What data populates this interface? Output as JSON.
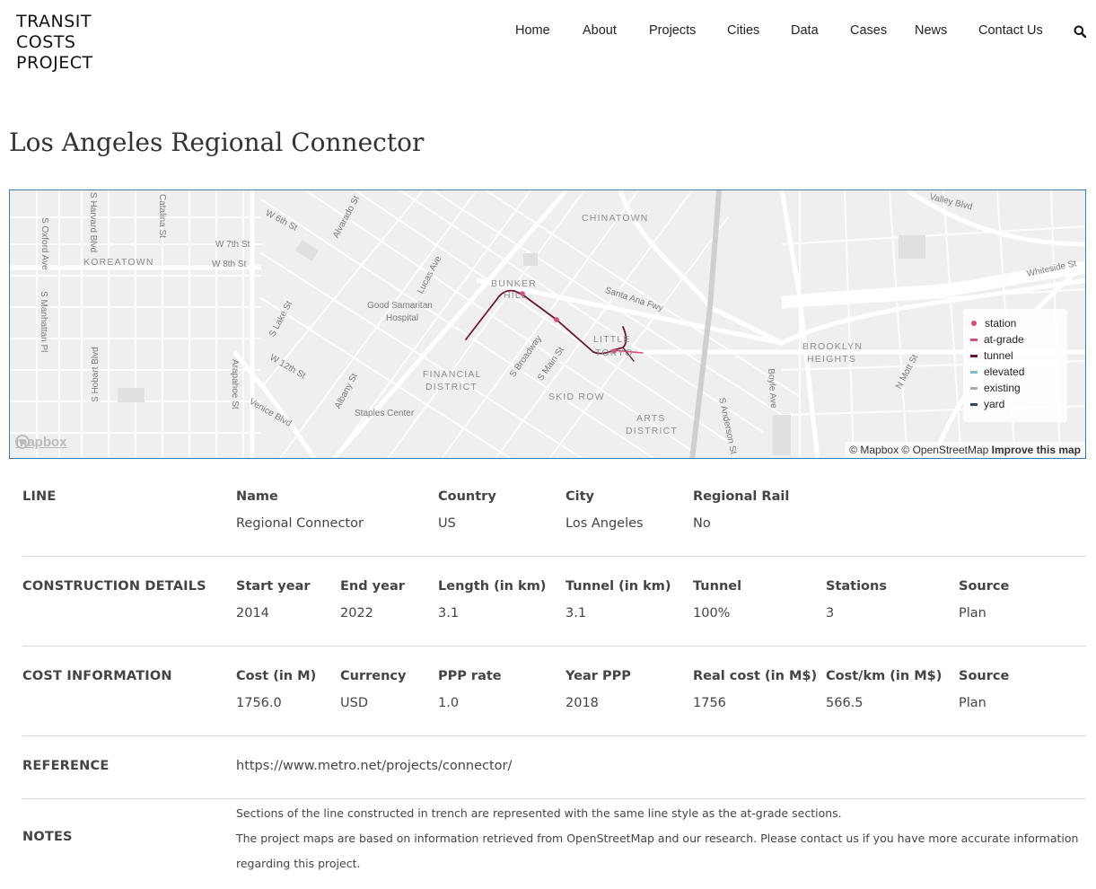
{
  "logo": [
    "TRANSIT",
    "COSTS",
    "PROJECT"
  ],
  "nav": [
    "Home",
    "About",
    "Projects",
    "Cities",
    "Data",
    "Cases",
    "News",
    "Contact Us"
  ],
  "page_title": "Los Angeles Regional Connector",
  "map": {
    "area_labels": [
      "KOREATOWN",
      "CHINATOWN",
      "BUNKER",
      "HILL",
      "LITTLE",
      "TOKYO",
      "FINANCIAL",
      "DISTRICT",
      "SKID ROW",
      "ARTS",
      "DISTRICT",
      "BROOKLYN",
      "HEIGHTS"
    ],
    "street_labels": [
      "S Oxford Ave",
      "S Harvard Blvd",
      "Catalina St",
      "W 6th St",
      "Alvarado St",
      "W 7th St",
      "W 8th St",
      "S Manhattan Pl",
      "Lucas Ave",
      "Good Samaritan",
      "Hospital",
      "S Lake St",
      "W 12th St",
      "S Hobart Blvd",
      "Arapahoe St",
      "Venice Blvd",
      "Albany St",
      "Staples Center",
      "S Broadway",
      "S Main St",
      "Santa Ana Fwy",
      "S Anderson St",
      "Boyle Ave",
      "N Mott St",
      "Valley Blvd",
      "Whiteside St"
    ],
    "legend": [
      {
        "label": "station",
        "color": "#e0457b",
        "kind": "dot"
      },
      {
        "label": "at-grade",
        "color": "#e0457b",
        "kind": "line"
      },
      {
        "label": "tunnel",
        "color": "#6b1632",
        "kind": "line"
      },
      {
        "label": "elevated",
        "color": "#7fb7d4",
        "kind": "line"
      },
      {
        "label": "existing",
        "color": "#aaaaaa",
        "kind": "line"
      },
      {
        "label": "yard",
        "color": "#2d4658",
        "kind": "line"
      }
    ],
    "mapbox_logo": "mapbox",
    "attribution": "© Mapbox © OpenStreetMap",
    "improve": "Improve this map"
  },
  "sections": {
    "line": {
      "heading": "LINE",
      "fields": [
        {
          "label": "Name",
          "value": "Regional Connector"
        },
        {
          "label": "Country",
          "value": "US"
        },
        {
          "label": "City",
          "value": "Los Angeles"
        },
        {
          "label": "Regional Rail",
          "value": "No"
        }
      ]
    },
    "construction": {
      "heading": "CONSTRUCTION DETAILS",
      "fields": [
        {
          "label": "Start year",
          "value": "2014"
        },
        {
          "label": "End year",
          "value": "2022"
        },
        {
          "label": "Length (in km)",
          "value": "3.1"
        },
        {
          "label": "Tunnel (in km)",
          "value": "3.1"
        },
        {
          "label": "Tunnel",
          "value": "100%"
        },
        {
          "label": "Stations",
          "value": "3"
        },
        {
          "label": "Source",
          "value": "Plan"
        }
      ]
    },
    "cost": {
      "heading": "COST INFORMATION",
      "fields": [
        {
          "label": "Cost (in M)",
          "value": "1756.0"
        },
        {
          "label": "Currency",
          "value": "USD"
        },
        {
          "label": "PPP rate",
          "value": "1.0"
        },
        {
          "label": "Year PPP",
          "value": "2018"
        },
        {
          "label": "Real cost (in M$)",
          "value": "1756"
        },
        {
          "label": "Cost/km (in M$)",
          "value": "566.5"
        },
        {
          "label": "Source",
          "value": "Plan"
        }
      ]
    },
    "reference": {
      "heading": "REFERENCE",
      "url": "https://www.metro.net/projects/connector/"
    },
    "notes": {
      "heading": "NOTES",
      "lines": [
        "Sections of the line constructed in trench are represented with the same line style as the at-grade sections.",
        "The project maps are based on information retrieved from OpenStreetMap and our research. Please contact us if you have more accurate information regarding this project."
      ]
    }
  }
}
